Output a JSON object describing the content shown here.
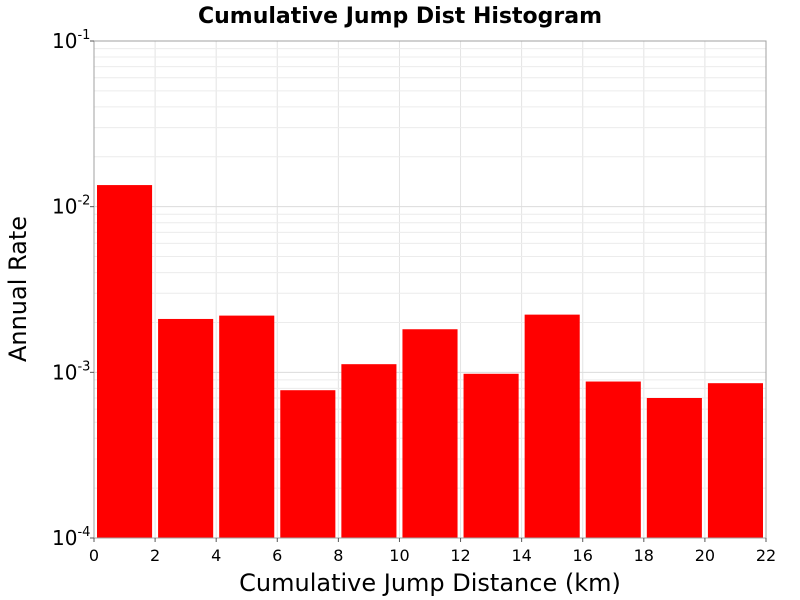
{
  "chart_data": {
    "type": "bar",
    "title": "Cumulative Jump Dist Histogram",
    "xlabel": "Cumulative Jump Distance (km)",
    "ylabel": "Annual Rate",
    "x_scale": "linear",
    "y_scale": "log",
    "xlim": [
      0,
      22
    ],
    "ylim": [
      0.0001,
      0.1
    ],
    "x_ticks": [
      0,
      2,
      4,
      6,
      8,
      10,
      12,
      14,
      16,
      18,
      20,
      22
    ],
    "y_ticks": [
      {
        "base": "10",
        "exp": "-4",
        "value": 0.0001
      },
      {
        "base": "10",
        "exp": "-3",
        "value": 0.001
      },
      {
        "base": "10",
        "exp": "-2",
        "value": 0.01
      },
      {
        "base": "10",
        "exp": "-1",
        "value": 0.1
      }
    ],
    "grid": true,
    "bar_color": "#ff0000",
    "bins": [
      {
        "x_start": 0,
        "x_end": 2,
        "value": 0.0135
      },
      {
        "x_start": 2,
        "x_end": 4,
        "value": 0.0021
      },
      {
        "x_start": 4,
        "x_end": 6,
        "value": 0.0022
      },
      {
        "x_start": 6,
        "x_end": 8,
        "value": 0.00078
      },
      {
        "x_start": 8,
        "x_end": 10,
        "value": 0.00112
      },
      {
        "x_start": 10,
        "x_end": 12,
        "value": 0.00182
      },
      {
        "x_start": 12,
        "x_end": 14,
        "value": 0.00098
      },
      {
        "x_start": 14,
        "x_end": 16,
        "value": 0.00223
      },
      {
        "x_start": 16,
        "x_end": 18,
        "value": 0.00088
      },
      {
        "x_start": 18,
        "x_end": 20,
        "value": 0.0007
      },
      {
        "x_start": 20,
        "x_end": 22,
        "value": 0.00086
      }
    ]
  }
}
